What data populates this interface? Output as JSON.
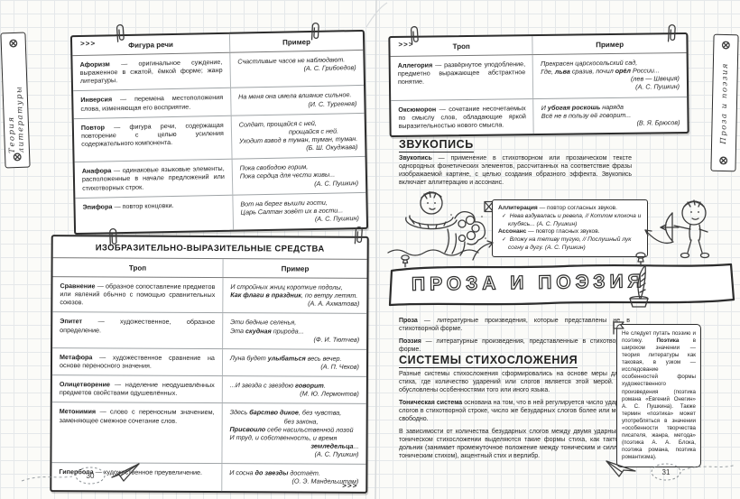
{
  "icons": {
    "check": "✓",
    "screw": "circled-asterisk",
    "paperclip": "paperclip",
    "pushpin": "pushpin",
    "flag": "flag",
    "paper_plane": "paper-plane"
  },
  "left_page": {
    "tab_label": "Теория литературы",
    "page_number": "30",
    "figures_table": {
      "marker": ">>>",
      "headers": [
        "Фигура речи",
        "Пример"
      ],
      "rows": [
        {
          "def": "**Афоризм** — оригинальное суждение, выраженное в сжатой, ёмкой форме; жанр литературы.",
          "ex": [
            {
              "t": "Счастливые часов не наблюдают."
            },
            {
              "t": "(А. С. Грибоедов)",
              "a": "r"
            }
          ]
        },
        {
          "def": "**Инверсия** — перемена местоположения слова, изменяющая его восприятие.",
          "ex": [
            {
              "t": "На меня она имела влияние сильное."
            },
            {
              "t": "(И. С. Тургенев)",
              "a": "r"
            }
          ]
        },
        {
          "def": "**Повтор** — фигура речи, содержащая повторение с целью усиления содержательного компонента.",
          "ex": [
            {
              "t": "Солдат, прощайся с ней,"
            },
            {
              "t": "прощайся с ней.",
              "a": "i"
            },
            {
              "t": "Уходит взвод в туман, туман, туман."
            },
            {
              "t": "(Б. Ш. Окуджава)",
              "a": "r"
            }
          ]
        },
        {
          "def": "**Анафора** — одинаковые языковые элементы, расположенные в начале предложений или стихотворных строк.",
          "ex": [
            {
              "t": "Пока свободою горим,"
            },
            {
              "t": "Пока сердца для чести живы..."
            },
            {
              "t": "(А. С. Пушкин)",
              "a": "r"
            }
          ]
        },
        {
          "def": "**Эпифора** — повтор концовки.",
          "ex": [
            {
              "t": "Вот на берег вышли гости,"
            },
            {
              "t": "Царь Салтан зовёт их в гости..."
            },
            {
              "t": "(А. С. Пушкин)",
              "a": "r"
            }
          ]
        }
      ]
    },
    "means_table": {
      "title": "ИЗОБРАЗИТЕЛЬНО-ВЫРАЗИТЕЛЬНЫЕ  СРЕДСТВА",
      "headers": [
        "Троп",
        "Пример"
      ],
      "end_marker": ">>>",
      "rows": [
        {
          "def": "**Сравнение** — образное сопоставление предметов или явлений обычно с помощью сравнительных союзов.",
          "ex": [
            {
              "t": "И стройных жниц короткие подолы,"
            },
            {
              "t": "**Как флаги в праздник**, по ветру летят."
            },
            {
              "t": "(А. А. Ахматова)",
              "a": "r"
            }
          ]
        },
        {
          "def": "**Эпитет** — художественное, образное определение.",
          "ex": [
            {
              "t": "Эти бедные селенья,"
            },
            {
              "t": "Эта **скудная** природа..."
            },
            {
              "t": "(Ф. И. Тютчев)",
              "a": "r"
            }
          ]
        },
        {
          "def": "**Метафора** — художественное сравнение на основе переносного значения.",
          "ex": [
            {
              "t": "Луна будет **улыбаться** весь вечер."
            },
            {
              "t": "(А. П. Чехов)",
              "a": "r"
            }
          ]
        },
        {
          "def": "**Олицетворение** — наделение неодушевлённых предметов свойствами одушевлённых.",
          "ex": [
            {
              "t": "...И звезда с звездою **говорит**."
            },
            {
              "t": "(М. Ю. Лермонтов)",
              "a": "r"
            }
          ]
        },
        {
          "def": "**Метонимия** — слово с переносным значением, заменяющее смежное сочетание слов.",
          "ex": [
            {
              "t": "Здесь **барство дикое**, без чувства,"
            },
            {
              "t": "без закона,",
              "a": "i"
            },
            {
              "t": "**Присвоило** себе насильственной лозой"
            },
            {
              "t": "И труд, и собственность, и время"
            },
            {
              "t": "**земледельца**...",
              "a": "r"
            },
            {
              "t": "(А. С. Пушкин)",
              "a": "r"
            }
          ]
        },
        {
          "def": "**Гипербола** — художественное преувеличение.",
          "ex": [
            {
              "t": "И сосна **до звезды** достаёт."
            },
            {
              "t": "(О. Э. Мандельштам)",
              "a": "r"
            }
          ]
        }
      ]
    }
  },
  "right_page": {
    "tab_label": "Проза и поэзия",
    "page_number": "31",
    "tropes_table": {
      "marker": ">>>",
      "headers": [
        "Троп",
        "Пример"
      ],
      "rows": [
        {
          "def": "**Аллегория** — развёрнутое уподобление, предметно выражающее абстрактное понятие.",
          "ex": [
            {
              "t": "Прекрасен царскосельский сад,"
            },
            {
              "t": "Где, **льва** сразив, почил **орёл** России..."
            },
            {
              "t": "(лев — Швеция)",
              "a": "r"
            },
            {
              "t": "(А. С. Пушкин)",
              "a": "r"
            }
          ]
        },
        {
          "def": "**Оксюморон** — сочетание несочетаемых по смыслу слов, обладающие яркой выразительностью нового смысла.",
          "ex": [
            {
              "t": "И **убогая роскошь** наряда"
            },
            {
              "t": "Всё не в пользу её говорит..."
            },
            {
              "t": "(В. Я. Брюсов)",
              "a": "r"
            }
          ]
        }
      ]
    },
    "zvukopis": {
      "heading": "ЗВУКОПИСЬ",
      "body": "**Звукопись** — применение в стихотворном или прозаическом тексте однородных фонетических элементов, рассчитанных на соответствие фразы изображаемой картине, с целью создания образного эффекта. Звукопись включает аллитерацию и ассонанс."
    },
    "sound_callout": {
      "lines": [
        {
          "t": "**Аллитерация** — повтор согласных звуков."
        },
        {
          "t": "Нева вздувалась и ревела, // Котлом клокоча и клубясь... (А. С. Пушкин)",
          "q": true
        },
        {
          "t": "**Ассонанс** — повтор гласных звуков."
        },
        {
          "t": "Вложу на тетиву тугую, // Послушный лук согну в дугу. (А. С. Пушкин)",
          "q": true
        }
      ]
    },
    "banner_title": "ПРОЗА  И  ПОЭЗИЯ",
    "definitions": [
      "**Проза** — литературные произведения, которые представлены не в стихотворной форме.",
      "**Поэзия** — литературные произведения, представленные в стихотворной форме."
    ],
    "systems": {
      "heading": "СИСТЕМЫ  СТИХОСЛОЖЕНИЯ",
      "paragraphs": [
        "Разные системы стихосложения сформировались на основе меры длины стиха, где количество ударений или слогов является этой мерой. Они обусловлены особенностями того или иного языка.",
        "**Тоническая система** основана на том, что в ней регулируется число ударных слогов в стихотворной строке, число же безударных слогов более или менее свободно.",
        "В зависимости от количества безударных слогов между двумя ударными в тоническом стихосложении выделяются такие формы стиха, как тактовик, дольник (занимает промежуточное положение между тоническим и силлабо-тоническим стихом), акцентный стих и верлибр."
      ]
    },
    "note": "Не следует путать поэзию и поэтику. **Поэтика** в широком значении — теория литературы как таковая, в узком — исследование особенностей формы художественного произведения (поэтика романа «Евгений Онегин» А. С. Пушкина). Также термин «поэтика» может употребляться в значении «особенности творчества писателя, жанра, метода» (поэтика А. А. Блока, поэтика романа, поэтика романтизма)."
  }
}
